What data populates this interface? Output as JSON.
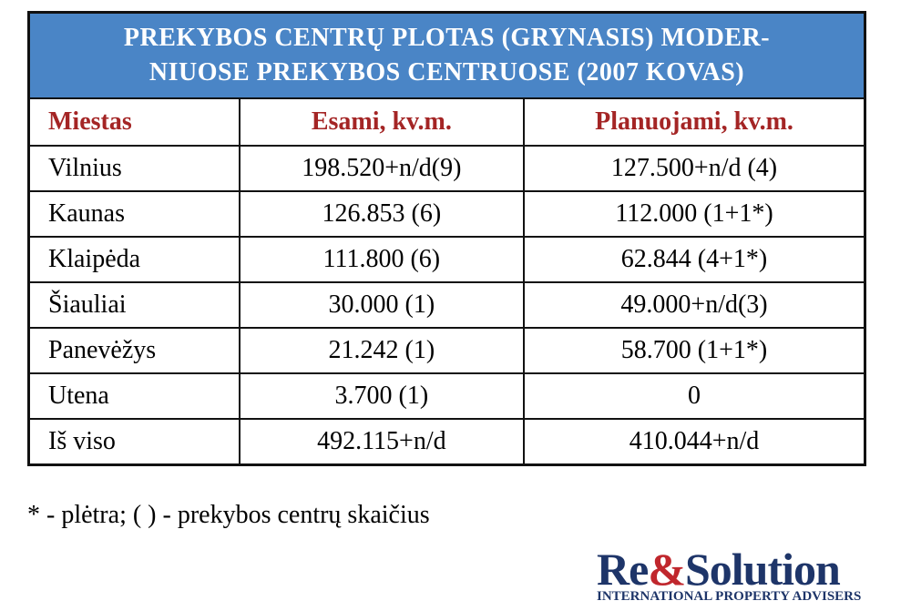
{
  "table": {
    "title_lines": [
      "PREKYBOS CENTRŲ PLOTAS (GRYNASIS) MODER-",
      "NIUOSE PREKYBOS CENTRUOSE (2007 KOVAS)"
    ],
    "header": [
      "Miestas",
      "Esami, kv.m.",
      "Planuojami, kv.m."
    ],
    "rows": [
      [
        "Vilnius",
        "198.520+n/d(9)",
        "127.500+n/d (4)"
      ],
      [
        "Kaunas",
        "126.853 (6)",
        "112.000 (1+1*)"
      ],
      [
        "Klaipėda",
        "111.800 (6)",
        "62.844 (4+1*)"
      ],
      [
        "Šiauliai",
        "30.000 (1)",
        "49.000+n/d(3)"
      ],
      [
        "Panevėžys",
        "21.242 (1)",
        "58.700 (1+1*)"
      ],
      [
        "Utena",
        "3.700 (1)",
        "0"
      ],
      [
        "Iš viso",
        "492.115+n/d",
        "410.044+n/d"
      ]
    ]
  },
  "footnote": "* - plėtra;  ( ) - prekybos centrų skaičius",
  "logo": {
    "part1": "Re",
    "part2": "&",
    "part3": "Solution",
    "tagline": "INTERNATIONAL PROPERTY ADVISERS"
  }
}
